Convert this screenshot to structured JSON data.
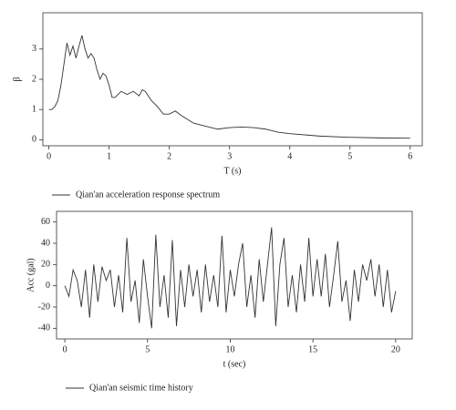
{
  "chart_data": [
    {
      "type": "line",
      "x_label": "T (s)",
      "y_label": "β",
      "xlim": [
        -0.1,
        6.2
      ],
      "ylim": [
        -0.2,
        4.2
      ],
      "xticks": [
        0,
        1,
        2,
        3,
        4,
        5,
        6
      ],
      "yticks": [
        0,
        1,
        2,
        3
      ],
      "series": [
        {
          "name": "Qian'an acceleration response spectrum",
          "color": "#333333",
          "x": [
            0,
            0.05,
            0.1,
            0.15,
            0.2,
            0.25,
            0.3,
            0.35,
            0.4,
            0.45,
            0.5,
            0.55,
            0.6,
            0.65,
            0.7,
            0.75,
            0.8,
            0.85,
            0.9,
            0.95,
            1.0,
            1.05,
            1.1,
            1.2,
            1.3,
            1.4,
            1.5,
            1.55,
            1.6,
            1.7,
            1.8,
            1.9,
            2.0,
            2.1,
            2.2,
            2.4,
            2.6,
            2.8,
            3.0,
            3.2,
            3.4,
            3.6,
            3.8,
            4.0,
            4.5,
            5.0,
            5.5,
            6.0
          ],
          "values": [
            1.0,
            1.0,
            1.1,
            1.3,
            1.8,
            2.5,
            3.2,
            2.8,
            3.1,
            2.7,
            3.1,
            3.45,
            3.0,
            2.7,
            2.85,
            2.7,
            2.3,
            2.0,
            2.2,
            2.1,
            1.8,
            1.4,
            1.4,
            1.6,
            1.5,
            1.6,
            1.45,
            1.65,
            1.6,
            1.3,
            1.1,
            0.85,
            0.85,
            0.95,
            0.8,
            0.55,
            0.45,
            0.35,
            0.4,
            0.42,
            0.4,
            0.35,
            0.25,
            0.2,
            0.12,
            0.08,
            0.06,
            0.05
          ]
        }
      ]
    },
    {
      "type": "line",
      "x_label": "t (sec)",
      "y_label": "Acc (gal)",
      "xlim": [
        -0.5,
        21
      ],
      "ylim": [
        -50,
        70
      ],
      "xticks": [
        0,
        5,
        10,
        15,
        20
      ],
      "yticks": [
        -40,
        -20,
        0,
        20,
        40,
        60
      ],
      "series": [
        {
          "name": "Qian'an seismic time history",
          "color": "#333333",
          "x": [
            0,
            0.25,
            0.5,
            0.75,
            1.0,
            1.25,
            1.5,
            1.75,
            2.0,
            2.25,
            2.5,
            2.75,
            3.0,
            3.25,
            3.5,
            3.75,
            4.0,
            4.25,
            4.5,
            4.75,
            5.0,
            5.25,
            5.5,
            5.75,
            6.0,
            6.25,
            6.5,
            6.75,
            7.0,
            7.25,
            7.5,
            7.75,
            8.0,
            8.25,
            8.5,
            8.75,
            9.0,
            9.25,
            9.5,
            9.75,
            10.0,
            10.25,
            10.5,
            10.75,
            11.0,
            11.25,
            11.5,
            11.75,
            12.0,
            12.25,
            12.5,
            12.75,
            13.0,
            13.25,
            13.5,
            13.75,
            14.0,
            14.25,
            14.5,
            14.75,
            15.0,
            15.25,
            15.5,
            15.75,
            16.0,
            16.25,
            16.5,
            16.75,
            17.0,
            17.25,
            17.5,
            17.75,
            18.0,
            18.25,
            18.5,
            18.75,
            19.0,
            19.25,
            19.5,
            19.75,
            20.0
          ],
          "values": [
            0,
            -10,
            15,
            5,
            -20,
            15,
            -30,
            20,
            -15,
            18,
            5,
            15,
            -20,
            10,
            -25,
            45,
            -15,
            5,
            -35,
            25,
            -10,
            -40,
            48,
            -20,
            10,
            -30,
            43,
            -38,
            15,
            -20,
            20,
            -10,
            15,
            -25,
            20,
            -15,
            10,
            -20,
            47,
            -25,
            15,
            -10,
            20,
            40,
            -20,
            10,
            -30,
            25,
            -15,
            20,
            55,
            -38,
            20,
            45,
            -20,
            10,
            -25,
            20,
            -15,
            45,
            -10,
            25,
            -10,
            30,
            -20,
            10,
            42,
            -15,
            5,
            -33,
            15,
            -15,
            20,
            5,
            25,
            -10,
            20,
            -20,
            15,
            -25,
            -5
          ]
        }
      ]
    }
  ]
}
